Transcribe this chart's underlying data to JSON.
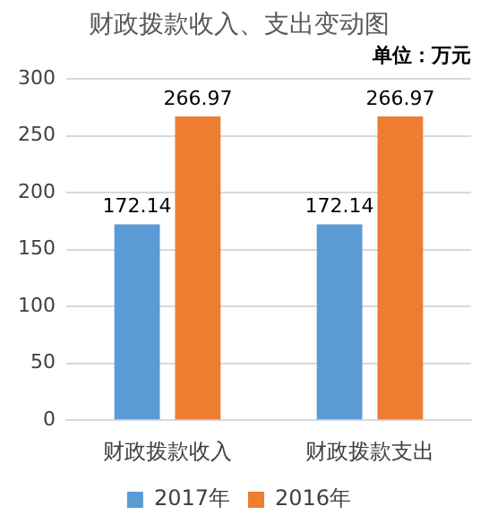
{
  "chart_data": {
    "type": "bar",
    "title": "财政拨款收入、支出变动图",
    "subtitle": "单位：万元",
    "categories": [
      "财政拨款收入",
      "财政拨款支出"
    ],
    "series": [
      {
        "name": "2017年",
        "color": "#5b9bd5",
        "values": [
          172.14,
          172.14
        ]
      },
      {
        "name": "2016年",
        "color": "#ed7d31",
        "values": [
          266.97,
          266.97
        ]
      }
    ],
    "ylim": [
      0,
      300
    ],
    "yticks": [
      0,
      50,
      100,
      150,
      200,
      250,
      300
    ],
    "grid": "y",
    "legend": "bottom",
    "data_labels": true
  }
}
